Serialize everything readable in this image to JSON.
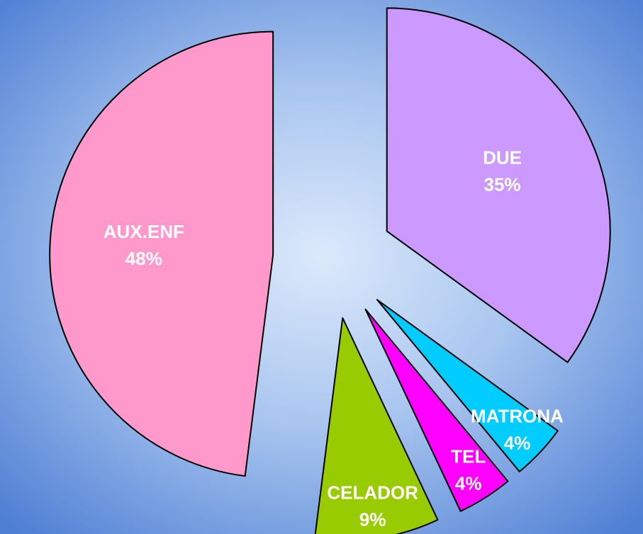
{
  "chart_data": {
    "type": "pie",
    "categories": [
      "DUE",
      "MATRONA",
      "TEL",
      "CELADOR",
      "AUX.ENF"
    ],
    "values": [
      35,
      4,
      4,
      9,
      48
    ],
    "value_labels": [
      "35%",
      "4%",
      "4%",
      "9%",
      "48%"
    ],
    "colors": [
      "#cc99ff",
      "#00ccff",
      "#ff00ff",
      "#99cc00",
      "#ff99cc"
    ]
  }
}
